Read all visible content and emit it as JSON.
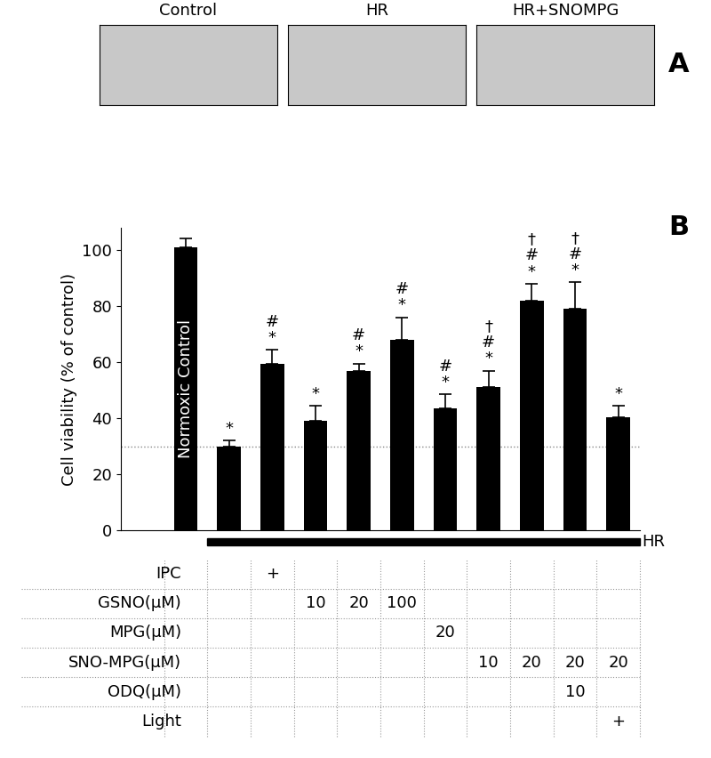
{
  "panel_a": {
    "label": "A",
    "images": [
      "Control",
      "HR",
      "HR+SNOMPG"
    ]
  },
  "chart_data": {
    "type": "bar",
    "panel_label": "B",
    "y_label": "Cell viability (% of control)",
    "categories": [
      null,
      null,
      null,
      null,
      null,
      null,
      null,
      null,
      null,
      null,
      null
    ],
    "values": [
      101,
      30,
      59.5,
      39,
      57,
      68,
      43.5,
      51,
      82,
      79,
      40.5
    ],
    "errors": [
      3,
      2,
      5,
      5.5,
      2.5,
      8,
      5,
      6,
      6,
      9.5,
      4
    ],
    "significance": [
      [],
      [
        "*"
      ],
      [
        "#",
        "*"
      ],
      [
        "*"
      ],
      [
        "#",
        "*"
      ],
      [
        "#",
        "*"
      ],
      [
        "#",
        "*"
      ],
      [
        "†",
        "#",
        "*"
      ],
      [
        "†",
        "#",
        "*"
      ],
      [
        "†",
        "#",
        "*"
      ],
      [
        "*"
      ]
    ],
    "bar_text": "Normoxic Control",
    "reference_line": 30,
    "treatment_label": "HR",
    "color": "#000000",
    "ylim": [
      0,
      108
    ],
    "yticks": [
      0,
      20,
      40,
      60,
      80,
      100
    ],
    "tick_labels": "y",
    "table": [
      {
        "label": "IPC",
        "cells": [
          null,
          null,
          "+",
          null,
          null,
          null,
          null,
          null,
          null,
          null,
          null
        ]
      },
      {
        "label": "GSNO(μM)",
        "cells": [
          null,
          null,
          null,
          "10",
          "20",
          "100",
          null,
          null,
          null,
          null,
          null
        ]
      },
      {
        "label": "MPG(μM)",
        "cells": [
          null,
          null,
          null,
          null,
          null,
          null,
          "20",
          null,
          null,
          null,
          null
        ]
      },
      {
        "label": "SNO-MPG(μM)",
        "cells": [
          null,
          null,
          null,
          null,
          null,
          null,
          null,
          "10",
          "20",
          "20",
          "20"
        ]
      },
      {
        "label": "ODQ(μM)",
        "cells": [
          null,
          null,
          null,
          null,
          null,
          null,
          null,
          null,
          null,
          "10",
          null
        ]
      },
      {
        "label": "Light",
        "cells": [
          null,
          null,
          null,
          null,
          null,
          null,
          null,
          null,
          null,
          null,
          "+"
        ]
      }
    ]
  }
}
